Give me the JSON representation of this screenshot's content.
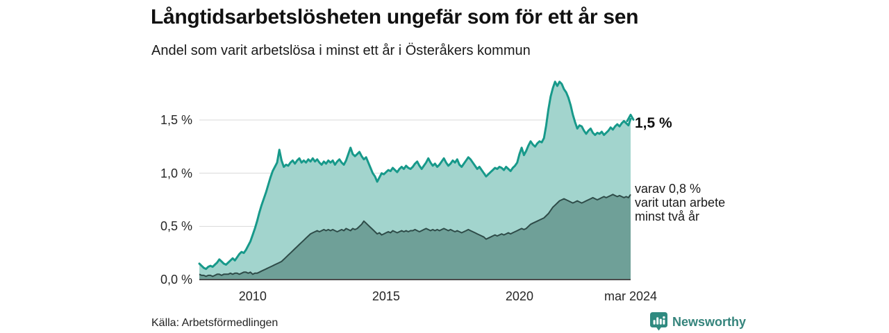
{
  "header": {
    "title": "Långtidsarbetslösheten ungefär som för ett år sen",
    "subtitle": "Andel som varit arbetslösa i minst ett år i Österåkers kommun"
  },
  "chart_data": {
    "type": "area",
    "title": "Långtidsarbetslösheten ungefär som för ett år sen",
    "subtitle": "Andel som varit arbetslösa i minst ett år i Österåkers kommun",
    "x_start": "2008-01",
    "x_end": "2024-03",
    "x_unit": "month",
    "ylim": [
      0,
      1.95
    ],
    "grid": true,
    "y_ticks": [
      {
        "label": "1,5 %",
        "value": 1.5
      },
      {
        "label": "1,0 %",
        "value": 1.0
      },
      {
        "label": "0,5 %",
        "value": 0.5
      },
      {
        "label": "0,0 %",
        "value": 0.0
      }
    ],
    "x_ticks": [
      {
        "label": "2010",
        "month_index": 24
      },
      {
        "label": "2015",
        "month_index": 84
      },
      {
        "label": "2020",
        "month_index": 144
      },
      {
        "label": "mar 2024",
        "month_index": 194
      }
    ],
    "series": [
      {
        "name": "Andel arbetslösa minst ett år",
        "line_color": "#17998a",
        "fill_color": "#a2d4cd",
        "latest_value": "1,5 %",
        "values": [
          0.15,
          0.13,
          0.11,
          0.1,
          0.12,
          0.13,
          0.12,
          0.14,
          0.16,
          0.19,
          0.17,
          0.15,
          0.14,
          0.16,
          0.18,
          0.2,
          0.18,
          0.21,
          0.24,
          0.26,
          0.25,
          0.28,
          0.32,
          0.36,
          0.42,
          0.48,
          0.55,
          0.63,
          0.7,
          0.76,
          0.82,
          0.89,
          0.96,
          1.02,
          1.06,
          1.1,
          1.22,
          1.12,
          1.06,
          1.08,
          1.07,
          1.1,
          1.12,
          1.09,
          1.12,
          1.14,
          1.1,
          1.12,
          1.1,
          1.13,
          1.11,
          1.14,
          1.11,
          1.13,
          1.1,
          1.08,
          1.11,
          1.09,
          1.12,
          1.1,
          1.12,
          1.08,
          1.11,
          1.13,
          1.1,
          1.08,
          1.12,
          1.18,
          1.24,
          1.18,
          1.16,
          1.18,
          1.2,
          1.16,
          1.13,
          1.15,
          1.1,
          1.05,
          1.0,
          0.97,
          0.92,
          0.96,
          1.0,
          0.99,
          1.01,
          1.03,
          1.02,
          1.05,
          1.03,
          1.01,
          1.04,
          1.06,
          1.04,
          1.07,
          1.05,
          1.04,
          1.06,
          1.09,
          1.11,
          1.07,
          1.04,
          1.07,
          1.1,
          1.14,
          1.1,
          1.07,
          1.09,
          1.06,
          1.08,
          1.11,
          1.14,
          1.1,
          1.07,
          1.09,
          1.12,
          1.1,
          1.13,
          1.08,
          1.06,
          1.09,
          1.12,
          1.15,
          1.13,
          1.1,
          1.07,
          1.04,
          1.06,
          1.03,
          1.0,
          0.97,
          0.99,
          1.01,
          1.03,
          1.05,
          1.04,
          1.06,
          1.05,
          1.03,
          1.06,
          1.04,
          1.02,
          1.05,
          1.07,
          1.1,
          1.18,
          1.24,
          1.17,
          1.21,
          1.26,
          1.3,
          1.27,
          1.25,
          1.28,
          1.3,
          1.29,
          1.33,
          1.45,
          1.6,
          1.72,
          1.8,
          1.86,
          1.82,
          1.86,
          1.84,
          1.79,
          1.76,
          1.71,
          1.64,
          1.55,
          1.48,
          1.42,
          1.45,
          1.44,
          1.4,
          1.37,
          1.4,
          1.42,
          1.38,
          1.36,
          1.38,
          1.37,
          1.39,
          1.36,
          1.38,
          1.4,
          1.43,
          1.41,
          1.44,
          1.46,
          1.44,
          1.47,
          1.49,
          1.47,
          1.45,
          1.51
        ]
      },
      {
        "name": "varav varit utan arbete minst två år",
        "line_color": "#2e4b48",
        "fill_color": "#6fa098",
        "latest_value": "0,8 %",
        "values": [
          0.05,
          0.04,
          0.04,
          0.03,
          0.04,
          0.04,
          0.03,
          0.04,
          0.05,
          0.05,
          0.04,
          0.05,
          0.05,
          0.05,
          0.06,
          0.05,
          0.06,
          0.06,
          0.05,
          0.06,
          0.07,
          0.07,
          0.06,
          0.07,
          0.05,
          0.06,
          0.06,
          0.07,
          0.08,
          0.09,
          0.1,
          0.11,
          0.12,
          0.13,
          0.14,
          0.15,
          0.16,
          0.17,
          0.19,
          0.21,
          0.23,
          0.25,
          0.27,
          0.29,
          0.31,
          0.33,
          0.35,
          0.37,
          0.39,
          0.41,
          0.43,
          0.44,
          0.45,
          0.46,
          0.45,
          0.46,
          0.47,
          0.46,
          0.47,
          0.46,
          0.47,
          0.46,
          0.45,
          0.46,
          0.47,
          0.46,
          0.48,
          0.47,
          0.46,
          0.48,
          0.47,
          0.48,
          0.5,
          0.52,
          0.55,
          0.53,
          0.51,
          0.49,
          0.47,
          0.45,
          0.43,
          0.44,
          0.42,
          0.43,
          0.44,
          0.45,
          0.44,
          0.46,
          0.45,
          0.44,
          0.45,
          0.46,
          0.45,
          0.46,
          0.45,
          0.46,
          0.46,
          0.47,
          0.46,
          0.45,
          0.46,
          0.47,
          0.48,
          0.47,
          0.46,
          0.47,
          0.46,
          0.47,
          0.46,
          0.47,
          0.48,
          0.47,
          0.46,
          0.47,
          0.46,
          0.45,
          0.46,
          0.45,
          0.44,
          0.45,
          0.46,
          0.47,
          0.46,
          0.45,
          0.44,
          0.43,
          0.42,
          0.41,
          0.4,
          0.38,
          0.39,
          0.4,
          0.41,
          0.42,
          0.41,
          0.42,
          0.43,
          0.42,
          0.43,
          0.44,
          0.43,
          0.44,
          0.45,
          0.46,
          0.47,
          0.48,
          0.47,
          0.48,
          0.5,
          0.52,
          0.53,
          0.54,
          0.55,
          0.56,
          0.57,
          0.58,
          0.6,
          0.62,
          0.65,
          0.68,
          0.7,
          0.72,
          0.74,
          0.75,
          0.76,
          0.75,
          0.74,
          0.73,
          0.72,
          0.73,
          0.74,
          0.73,
          0.72,
          0.73,
          0.74,
          0.75,
          0.76,
          0.77,
          0.76,
          0.75,
          0.76,
          0.77,
          0.78,
          0.77,
          0.78,
          0.79,
          0.8,
          0.79,
          0.78,
          0.79,
          0.78,
          0.77,
          0.78,
          0.77,
          0.8
        ]
      }
    ],
    "annotations": {
      "latest_value_label": "1,5 %",
      "series2_label_lines": [
        "varav 0,8 %",
        "varit utan arbete",
        "minst två år"
      ]
    },
    "colors": {
      "grid": "#d9d9d9",
      "baseline": "#4b4b4b",
      "brand": "#2f8a80"
    }
  },
  "footer": {
    "source": "Källa: Arbetsförmedlingen",
    "brand": "Newsworthy"
  }
}
